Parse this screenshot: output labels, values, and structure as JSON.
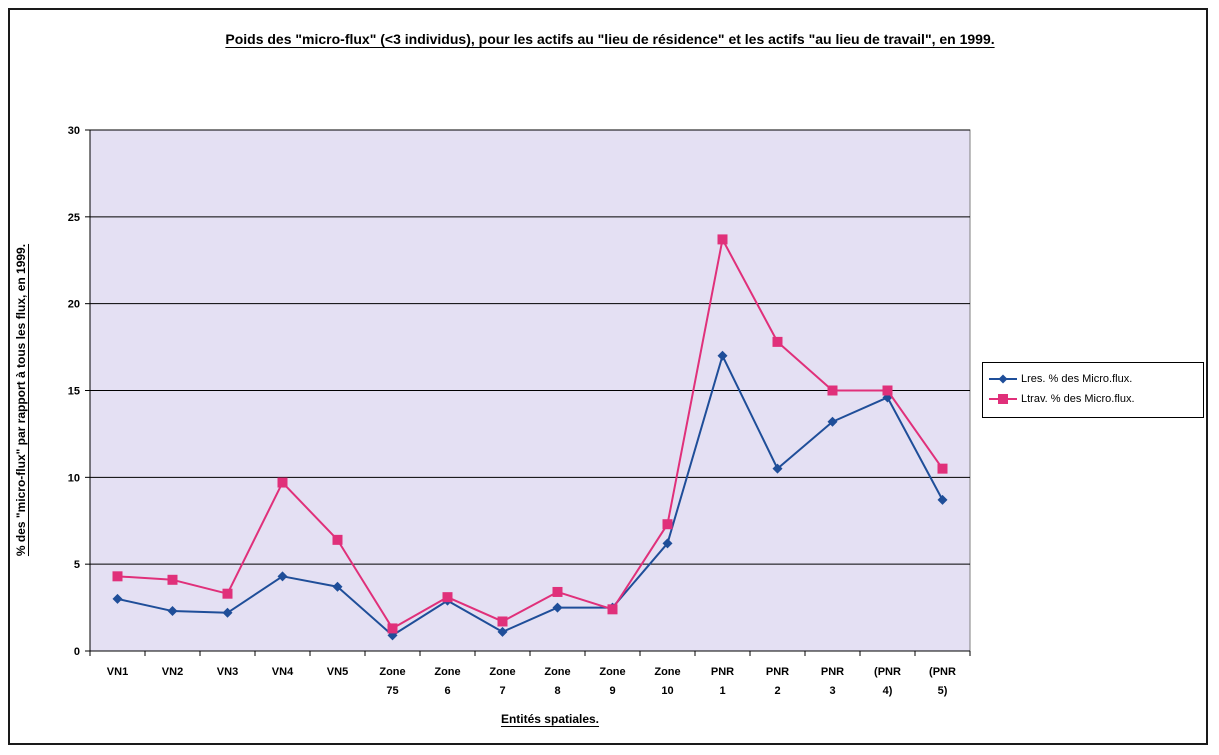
{
  "chart_data": {
    "type": "line",
    "title": "Poids des \"micro-flux\" (<3 individus), pour les actifs au \"lieu de résidence\" et les actifs \"au lieu de travail\", en 1999.",
    "xlabel": "Entités spatiales.",
    "ylabel": "% des \"micro-flux\" par rapport à tous les flux, en 1999.",
    "categories": [
      "VN1",
      "VN2",
      "VN3",
      "VN4",
      "VN5",
      "Zone 75",
      "Zone 6",
      "Zone 7",
      "Zone 8",
      "Zone 9",
      "Zone 10",
      "PNR 1",
      "PNR 2",
      "PNR 3",
      "(PNR 4)",
      "(PNR 5)"
    ],
    "ylim": [
      0,
      30
    ],
    "yticks": [
      0,
      5,
      10,
      15,
      20,
      25,
      30
    ],
    "grid": "horizontal",
    "legend_position": "right",
    "series": [
      {
        "name": "Lres. % des Micro.flux.",
        "color": "#1f4e99",
        "marker": "diamond",
        "values": [
          3.0,
          2.3,
          2.2,
          4.3,
          3.7,
          0.9,
          2.9,
          1.1,
          2.5,
          2.5,
          6.2,
          17.0,
          10.5,
          13.2,
          14.6,
          8.7
        ]
      },
      {
        "name": "Ltrav. % des Micro.flux.",
        "color": "#e0307a",
        "marker": "square",
        "values": [
          4.3,
          4.1,
          3.3,
          9.7,
          6.4,
          1.3,
          3.1,
          1.7,
          3.4,
          2.4,
          7.3,
          23.7,
          17.8,
          15.0,
          15.0,
          10.5
        ]
      }
    ],
    "plot_background": "#e4e0f3",
    "gridline_color": "#000000"
  }
}
